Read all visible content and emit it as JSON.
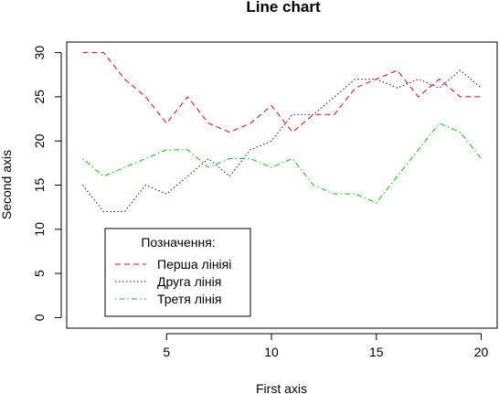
{
  "chart_data": {
    "type": "line",
    "title": "Line chart",
    "xlabel": "First axis",
    "ylabel": "Second axis",
    "xlim": [
      0.24,
      20.76
    ],
    "ylim": [
      -1.2,
      31.2
    ],
    "x_ticks": [
      5,
      10,
      15,
      20
    ],
    "y_ticks": [
      0,
      5,
      10,
      15,
      20,
      25,
      30
    ],
    "grid": false,
    "legend": {
      "title": "Позначення:",
      "placement": "bottom-left"
    },
    "x": [
      1,
      2,
      3,
      4,
      5,
      6,
      7,
      8,
      9,
      10,
      11,
      12,
      13,
      14,
      15,
      16,
      17,
      18,
      19,
      20
    ],
    "series": [
      {
        "name": "Перша лініяі",
        "color": "#ff0000",
        "line_style": "dashed",
        "values": [
          30,
          30,
          27,
          25,
          22,
          25,
          22,
          21,
          22,
          24,
          21,
          23,
          23,
          26,
          27,
          28,
          25,
          27,
          25,
          25
        ]
      },
      {
        "name": "Друга лінія",
        "color": "#0000ff",
        "line_style": "dotted",
        "values": [
          15,
          12,
          12,
          15,
          14,
          16,
          18,
          16,
          19,
          20,
          23,
          23,
          25,
          27,
          27,
          26,
          27,
          26,
          28,
          26
        ]
      },
      {
        "name": "Третя лінія",
        "color": "#00cc00",
        "line_style": "dotdash",
        "values": [
          18,
          16,
          17,
          18,
          19,
          19,
          17,
          18,
          18,
          17,
          18,
          15,
          14,
          14,
          13,
          16,
          19,
          22,
          21,
          18
        ]
      }
    ]
  }
}
